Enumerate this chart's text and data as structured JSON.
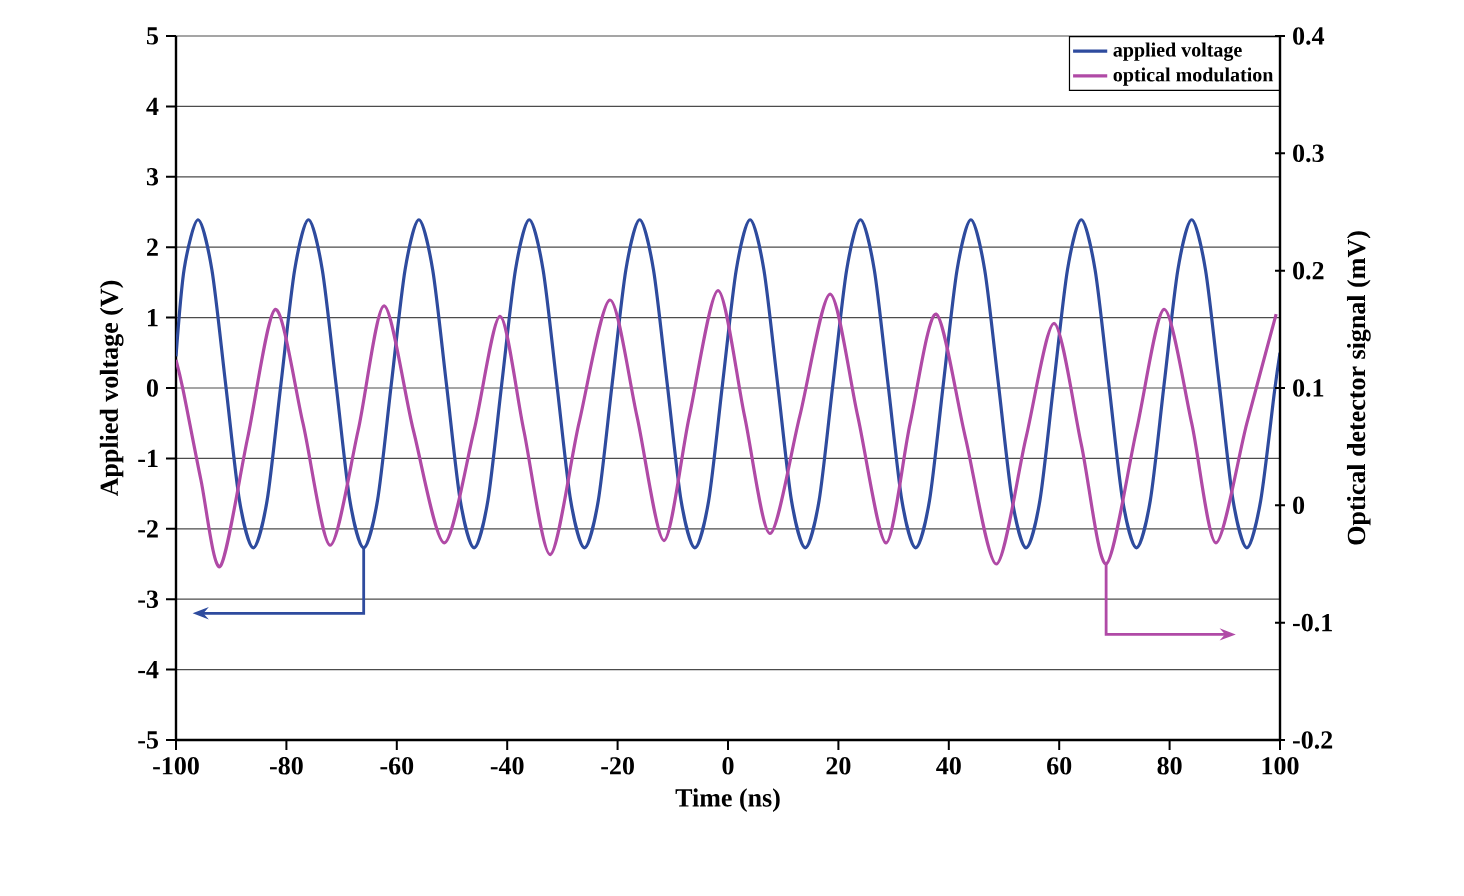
{
  "chart_data": {
    "type": "line",
    "xlabel": "Time (ns)",
    "ylabel": "Applied voltage (V)",
    "y2label": "Optical detector signal (mV)",
    "xlim": [
      -100,
      100
    ],
    "xticks": [
      -100,
      -80,
      -60,
      -40,
      -20,
      0,
      20,
      40,
      60,
      80,
      100
    ],
    "ylim": [
      -5,
      5
    ],
    "yticks": [
      -5,
      -4,
      -3,
      -2,
      -1,
      0,
      1,
      2,
      3,
      4,
      5
    ],
    "y2lim": [
      -0.2,
      0.4
    ],
    "y2ticks": [
      -0.2,
      -0.1,
      0,
      0.1,
      0.2,
      0.3,
      0.4
    ],
    "grid": "y",
    "legend": "top right",
    "series": [
      {
        "name": "applied voltage",
        "color": "#2e4b9e",
        "x": [
          -100,
          -98.5,
          -96,
          -93.5,
          -91,
          -88.5,
          -86,
          -83.5,
          -81,
          -78.5,
          -76,
          -73.5,
          -71,
          -68.5,
          -66,
          -63.5,
          -61,
          -58.5,
          -56,
          -53.5,
          -51,
          -48.5,
          -46,
          -43.5,
          -41,
          -38.5,
          -36,
          -33.5,
          -31,
          -28.5,
          -26,
          -23.5,
          -21,
          -18.5,
          -16,
          -13.5,
          -11,
          -8.5,
          -6,
          -3.5,
          -1,
          1.5,
          4,
          6.5,
          9,
          11.5,
          14,
          16.5,
          19,
          21.5,
          24,
          26.5,
          29,
          31.5,
          34,
          36.5,
          39,
          41.5,
          44,
          46.5,
          49,
          51.5,
          54,
          56.5,
          59,
          61.5,
          64,
          66.5,
          69,
          71.5,
          74,
          76.5,
          79,
          81.5,
          84,
          86.5,
          89,
          91.5,
          94,
          96.5,
          99,
          100
        ],
        "values": [
          0.45,
          1.7,
          2.39,
          1.68,
          0.05,
          -1.6,
          -2.27,
          -1.6,
          0.05,
          1.68,
          2.39,
          1.68,
          0.05,
          -1.6,
          -2.27,
          -1.6,
          0.05,
          1.68,
          2.39,
          1.68,
          0.05,
          -1.6,
          -2.27,
          -1.6,
          0.05,
          1.68,
          2.39,
          1.68,
          0.05,
          -1.6,
          -2.27,
          -1.6,
          0.05,
          1.68,
          2.39,
          1.68,
          0.05,
          -1.6,
          -2.27,
          -1.6,
          0.05,
          1.68,
          2.39,
          1.68,
          0.05,
          -1.6,
          -2.27,
          -1.6,
          0.05,
          1.68,
          2.39,
          1.68,
          0.05,
          -1.6,
          -2.27,
          -1.6,
          0.05,
          1.68,
          2.39,
          1.68,
          0.05,
          -1.6,
          -2.27,
          -1.6,
          0.05,
          1.68,
          2.39,
          1.68,
          0.05,
          -1.6,
          -2.27,
          -1.6,
          0.05,
          1.68,
          2.39,
          1.68,
          0.05,
          -1.6,
          -2.27,
          -1.6,
          -0.05,
          0.5
        ]
      },
      {
        "name": "optical modulation",
        "color": "#b04aa6",
        "axis": "y2",
        "x": [
          -100,
          -98.7,
          -95.5,
          -92,
          -87,
          -82,
          -77,
          -72.1,
          -67,
          -62.3,
          -57,
          -51.4,
          -46,
          -41.3,
          -37,
          -32.2,
          -27,
          -21.4,
          -16.5,
          -11.6,
          -7,
          -1.8,
          3,
          7.6,
          13,
          18.5,
          23.5,
          28.6,
          33,
          37.7,
          43,
          48.6,
          54,
          59.1,
          64,
          68.5,
          74,
          79,
          84,
          88.4,
          94,
          99.3
        ],
        "values": [
          0.124,
          0.098,
          0.022,
          -0.052,
          0.058,
          0.167,
          0.07,
          -0.034,
          0.064,
          0.17,
          0.064,
          -0.032,
          0.064,
          0.161,
          0.064,
          -0.042,
          0.07,
          0.175,
          0.076,
          -0.03,
          0.076,
          0.183,
          0.076,
          -0.024,
          0.076,
          0.18,
          0.076,
          -0.032,
          0.07,
          0.163,
          0.058,
          -0.05,
          0.058,
          0.155,
          0.052,
          -0.05,
          0.064,
          0.167,
          0.07,
          -0.032,
          0.07,
          0.163
        ]
      }
    ]
  }
}
